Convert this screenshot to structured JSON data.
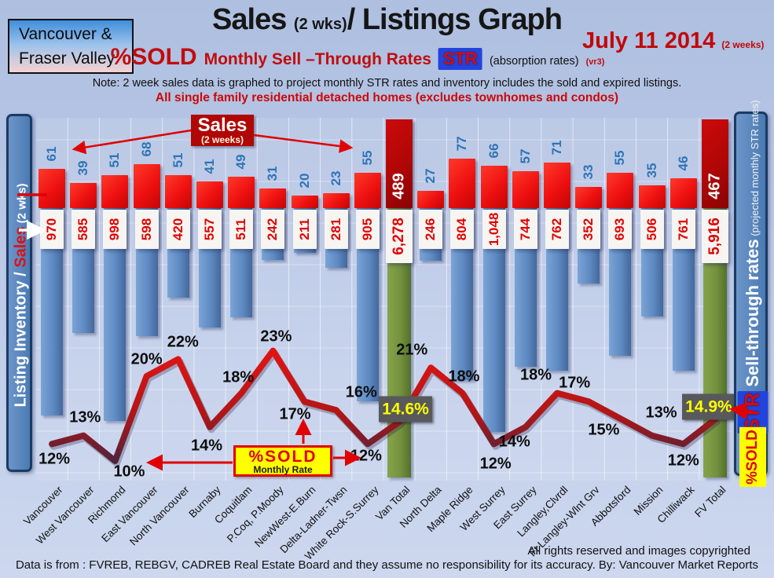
{
  "header": {
    "region_line1": "Vancouver &",
    "region_line2": "Fraser Valley",
    "title_main": "Sales ",
    "title_small": "(2 wks)",
    "title_rest": "/ Listings Graph",
    "date": "July 11 2014",
    "date_note": "(2 weeks)",
    "subtitle_sold": "%SOLD",
    "subtitle_rates": "Monthly Sell –Through Rates",
    "subtitle_str_badge": "STR",
    "subtitle_absorption": "(absorption rates)",
    "subtitle_version": "(vr3)",
    "note": "Note: 2 week sales data is graphed to project monthly STR rates and inventory includes the sold and expired listings.",
    "scope": "All single family residential detached homes (excludes townhomes and condos)"
  },
  "left_axis": {
    "label_part1": "Listing Inventory / ",
    "label_sales": "Sales",
    "label_part2": " (2  wks)"
  },
  "right_axis": {
    "label_bold": "Sell-through rates",
    "label_small": " (projected monthly STR rates)",
    "str_badge": "STR",
    "sold_badge": "%SOLD"
  },
  "callouts": {
    "sales_title": "Sales",
    "sales_sub": "(2 weeks)",
    "sold_title": "%SOLD",
    "sold_sub": "Monthly Rate"
  },
  "footer": {
    "rights": "All rights reserved and  images copyrighted",
    "source": "Data is from : FVREB, REBGV, CADREB Real Estate Board and they assume no responsibility for its accuracy. By: Vancouver Market Reports"
  },
  "chart_data": {
    "type": "bar+line",
    "title": "Sales (2 wks)/ Listings Graph",
    "categories": [
      "Vancouver",
      "West Vancouver",
      "Richmond",
      "East Vancouver",
      "North Vancouver",
      "Burnaby",
      "Coquitlam",
      "P.Coq, P.Moody",
      "NewWest-E.Burn",
      "Delta-Ladner-Twsn",
      "White Rock-S.Surrey",
      "Van Total",
      "North Delta",
      "Maple Ridge",
      "West Surrey",
      "East Surrey",
      "Langley,Clvrdl",
      "Ft Langley-Wlnt Grv",
      "Abbotsford",
      "Mission",
      "Chilliwack",
      "FV Total"
    ],
    "series": [
      {
        "name": "Sales (2 weeks)",
        "values": [
          61,
          39,
          51,
          68,
          51,
          41,
          49,
          31,
          20,
          23,
          55,
          489,
          27,
          77,
          66,
          57,
          71,
          33,
          55,
          35,
          46,
          467
        ]
      },
      {
        "name": "Listing Inventory (includes sold and expired)",
        "values": [
          970,
          585,
          998,
          598,
          420,
          557,
          511,
          242,
          211,
          281,
          905,
          6278,
          246,
          804,
          1048,
          744,
          762,
          352,
          693,
          506,
          761,
          5916
        ]
      },
      {
        "name": "%SOLD Monthly Rate (projected STR)",
        "values": [
          12,
          13,
          10,
          20,
          22,
          14,
          18,
          23,
          17,
          16,
          12,
          14.6,
          21,
          18,
          12,
          14,
          18,
          17,
          15,
          13,
          12,
          14.9
        ]
      }
    ],
    "inventory_labels": [
      "970",
      "585",
      "998",
      "598",
      "420",
      "557",
      "511",
      "242",
      "211",
      "281",
      "905",
      "6,278",
      "246",
      "804",
      "1,048",
      "744",
      "762",
      "352",
      "693",
      "506",
      "761",
      "5,916"
    ],
    "pct_labels": [
      "12%",
      "13%",
      "10%",
      "20%",
      "22%",
      "14%",
      "18%",
      "23%",
      "17%",
      "16%",
      "12%",
      "14.6%",
      "21%",
      "18%",
      "12%",
      "14%",
      "18%",
      "17%",
      "15%",
      "13%",
      "12%",
      "14.9%"
    ],
    "total_indices": [
      11,
      21
    ],
    "legend_position": "none",
    "grid": true,
    "colors": {
      "sales_bar": "#ee1010",
      "total_sales_bar": "#b00606",
      "inventory_bar": "#5e8ac2",
      "total_inventory_bar": "#74923e",
      "pct_line": "#c31414",
      "sales_value_text": "#2e74b6",
      "inventory_value_text": "#e00000",
      "highlight_box": "#58595b",
      "highlight_text": "#ffff00"
    }
  }
}
